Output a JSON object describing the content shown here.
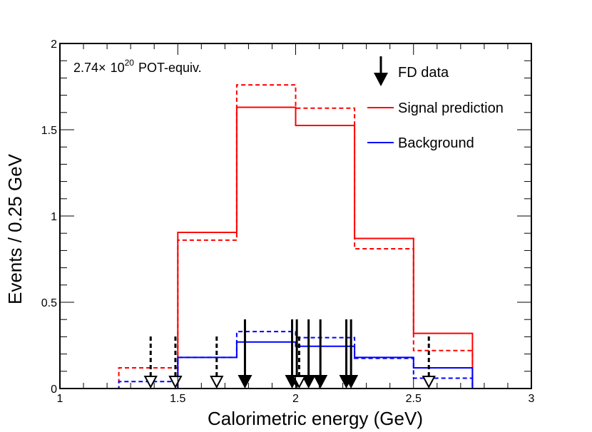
{
  "chart_data": {
    "type": "step-histogram",
    "xlabel": "Calorimetric energy (GeV)",
    "ylabel": "Events / 0.25 GeV",
    "xlim": [
      1,
      3
    ],
    "ylim": [
      0,
      2
    ],
    "x_ticks": [
      1,
      1.5,
      2,
      2.5,
      3
    ],
    "x_tick_labels": [
      "1",
      "1.5",
      "2",
      "2.5",
      "3"
    ],
    "y_ticks": [
      0,
      0.5,
      1,
      1.5,
      2
    ],
    "y_tick_labels": [
      "0",
      "0.5",
      "1",
      "1.5",
      "2"
    ],
    "exposure_label": {
      "prefix": "2.74",
      "times": "×",
      "base": "10",
      "exponent": "20",
      "suffix": "POT-equiv."
    },
    "legend": {
      "position": "top-right",
      "entries": [
        {
          "label": "FD data",
          "marker": "arrow",
          "color": "#000000"
        },
        {
          "label": "Signal prediction",
          "marker": "line",
          "color": "#ff0000"
        },
        {
          "label": "Background",
          "marker": "line",
          "color": "#0000ff"
        }
      ]
    },
    "bin_edges": [
      1.0,
      1.25,
      1.5,
      1.75,
      2.0,
      2.25,
      2.5,
      2.75,
      3.0
    ],
    "series": [
      {
        "name": "Signal prediction",
        "color": "#ff0000",
        "style": "solid",
        "values": [
          0,
          0,
          0.905,
          1.63,
          1.525,
          0.87,
          0.32,
          0
        ]
      },
      {
        "name": "Signal prediction (alternate)",
        "color": "#ff0000",
        "style": "dashed",
        "values": [
          0,
          0.12,
          0.86,
          1.76,
          1.625,
          0.81,
          0.22,
          0
        ]
      },
      {
        "name": "Background",
        "color": "#0000ff",
        "style": "solid",
        "values": [
          0,
          0,
          0.18,
          0.27,
          0.245,
          0.18,
          0.12,
          0
        ]
      },
      {
        "name": "Background (alternate)",
        "color": "#0000ff",
        "style": "dashed",
        "values": [
          0,
          0.04,
          0.18,
          0.33,
          0.295,
          0.175,
          0.06,
          0
        ]
      }
    ],
    "data_events_solid": [
      1.785,
      1.985,
      2.005,
      2.055,
      2.105,
      2.215,
      2.235
    ],
    "data_events_dashed": [
      1.385,
      1.49,
      1.665,
      2.015,
      2.565
    ]
  }
}
